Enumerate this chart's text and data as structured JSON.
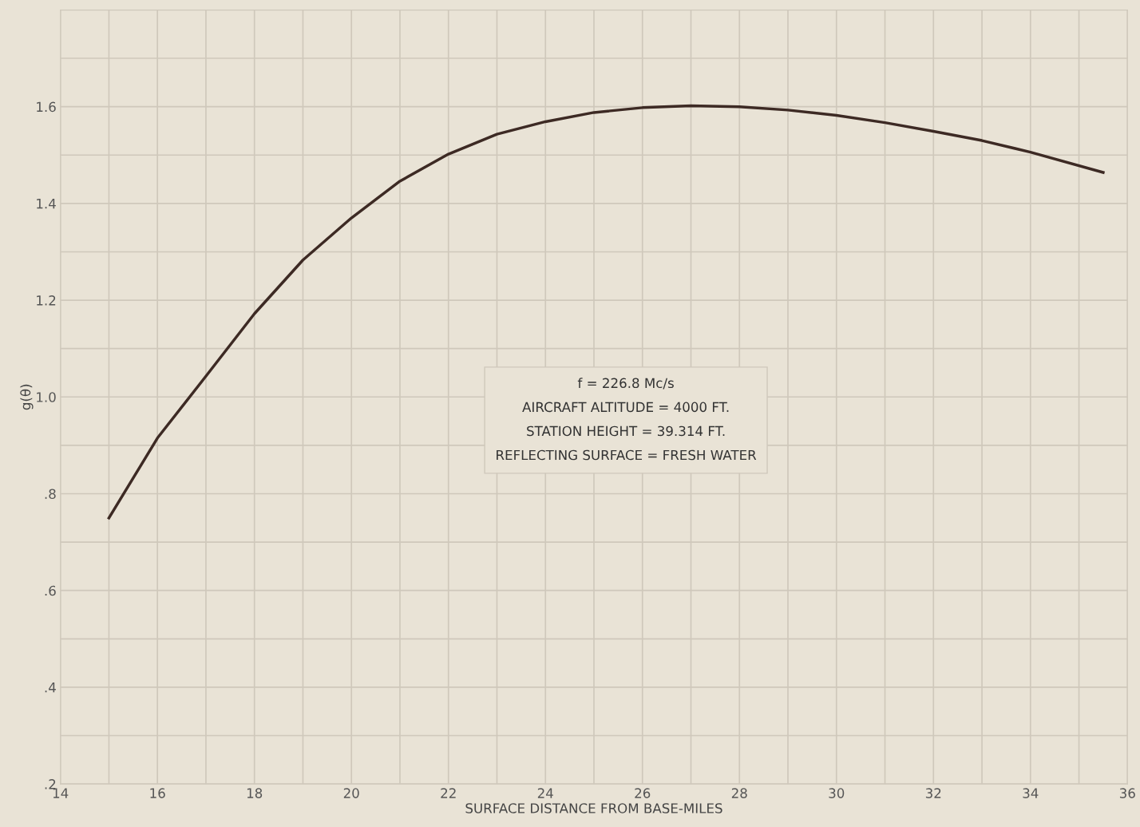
{
  "chart_data": {
    "type": "line",
    "xlabel": "SURFACE DISTANCE FROM BASE-MILES",
    "ylabel": "g(θ)",
    "x": [
      15,
      16,
      17,
      18,
      19,
      20,
      21,
      22,
      23,
      24,
      25,
      26,
      27,
      28,
      29,
      30,
      31,
      32,
      33,
      34,
      35.5
    ],
    "series": [
      {
        "color": "#3d2a24",
        "values": [
          0.75,
          0.915,
          1.043,
          1.172,
          1.283,
          1.37,
          1.446,
          1.502,
          1.543,
          1.569,
          1.588,
          1.598,
          1.602,
          1.6,
          1.593,
          1.582,
          1.567,
          1.549,
          1.53,
          1.506,
          1.464
        ]
      }
    ],
    "xlim": [
      14,
      36
    ],
    "xticks": [
      14,
      16,
      18,
      20,
      22,
      24,
      26,
      28,
      30,
      32,
      34,
      36
    ],
    "ylim": [
      0.2,
      1.8
    ],
    "yticks": [
      {
        "value": 0.2,
        "label": ".2"
      },
      {
        "value": 0.4,
        "label": ".4"
      },
      {
        "value": 0.6,
        "label": ".6"
      },
      {
        "value": 0.8,
        "label": ".8"
      },
      {
        "value": 1.0,
        "label": "1.0"
      },
      {
        "value": 1.2,
        "label": "1.2"
      },
      {
        "value": 1.4,
        "label": "1.4"
      },
      {
        "value": 1.6,
        "label": "1.6"
      }
    ],
    "grid": true,
    "marker": "none",
    "line_style": "solid",
    "annotations": [
      "f = 226.8 Mc/s\nAIRCRAFT ALTITUDE = 4000 FT.\nSTATION HEIGHT = 39.314 FT.\nREFLECTING SURFACE = FRESH WATER"
    ]
  }
}
